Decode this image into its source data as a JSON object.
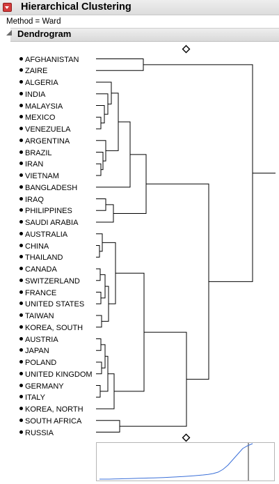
{
  "report": {
    "title": "Hierarchical Clustering",
    "method_label": "Method = ",
    "method_value": "Ward",
    "section_title": "Dendrogram"
  },
  "leaves": [
    "AFGHANISTAN",
    "ZAIRE",
    "ALGERIA",
    "INDIA",
    "MALAYSIA",
    "MEXICO",
    "VENEZUELA",
    "ARGENTINA",
    "BRAZIL",
    "IRAN",
    "VIETNAM",
    "BANGLADESH",
    "IRAQ",
    "PHILIPPINES",
    "SAUDI ARABIA",
    "AUSTRALIA",
    "CHINA",
    "THAILAND",
    "CANADA",
    "SWITZERLAND",
    "FRANCE",
    "UNITED STATES",
    "TAIWAN",
    "KOREA, SOUTH",
    "AUSTRIA",
    "JAPAN",
    "POLAND",
    "UNITED KINGDOM",
    "GERMANY",
    "ITALY",
    "KOREA, NORTH",
    "SOUTH AFRICA",
    "RUSSIA"
  ],
  "colors": {
    "line": "#000000",
    "scree_line": "#3a6fd8",
    "scree_cut": "#333333"
  },
  "icons": {
    "menu": "red-triangle-menu-icon",
    "disclosure": "disclosure-triangle-icon",
    "slider": "diamond-handle-icon"
  }
}
